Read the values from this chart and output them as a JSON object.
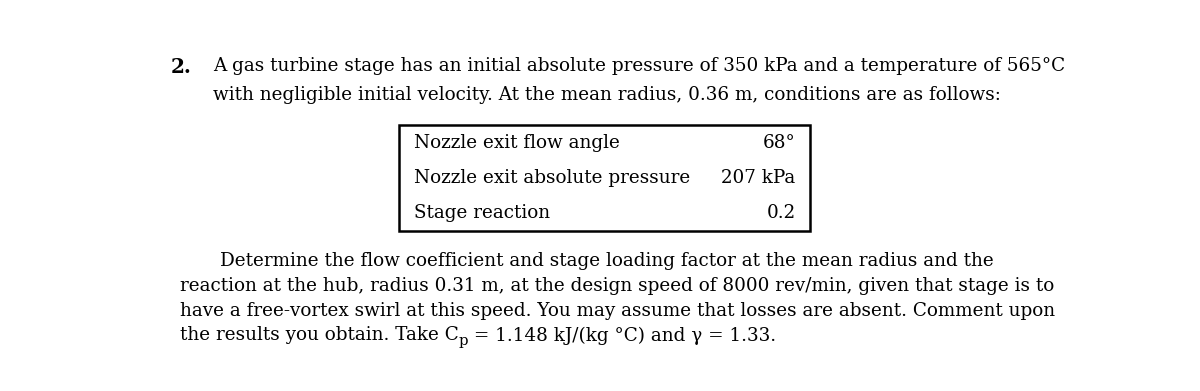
{
  "number": "2.",
  "line1": "A gas turbine stage has an initial absolute pressure of 350 kPa and a temperature of 565°C",
  "line2": "with negligible initial velocity. At the mean radius, 0.36 m, conditions are as follows:",
  "table_rows": [
    [
      "Nozzle exit flow angle",
      "68°"
    ],
    [
      "Nozzle exit absolute pressure",
      "207 kPa"
    ],
    [
      "Stage reaction",
      "0.2"
    ]
  ],
  "para_line1": "Determine the flow coefficient and stage loading factor at the mean radius and the",
  "para_line2": "reaction at the hub, radius 0.31 m, at the design speed of 8000 rev/min, given that stage is to",
  "para_line3": "have a free-vortex swirl at this speed. You may assume that losses are absent. Comment upon",
  "para_line4_pre": "the results you obtain. Take C",
  "para_line4_sub": "p",
  "para_line4_post": " = 1.148 kJ/(kg °C) and γ = 1.33.",
  "bg_color": "#ffffff",
  "text_color": "#000000",
  "font_size_main": 13.2,
  "font_size_number": 14.5,
  "font_family": "DejaVu Serif"
}
